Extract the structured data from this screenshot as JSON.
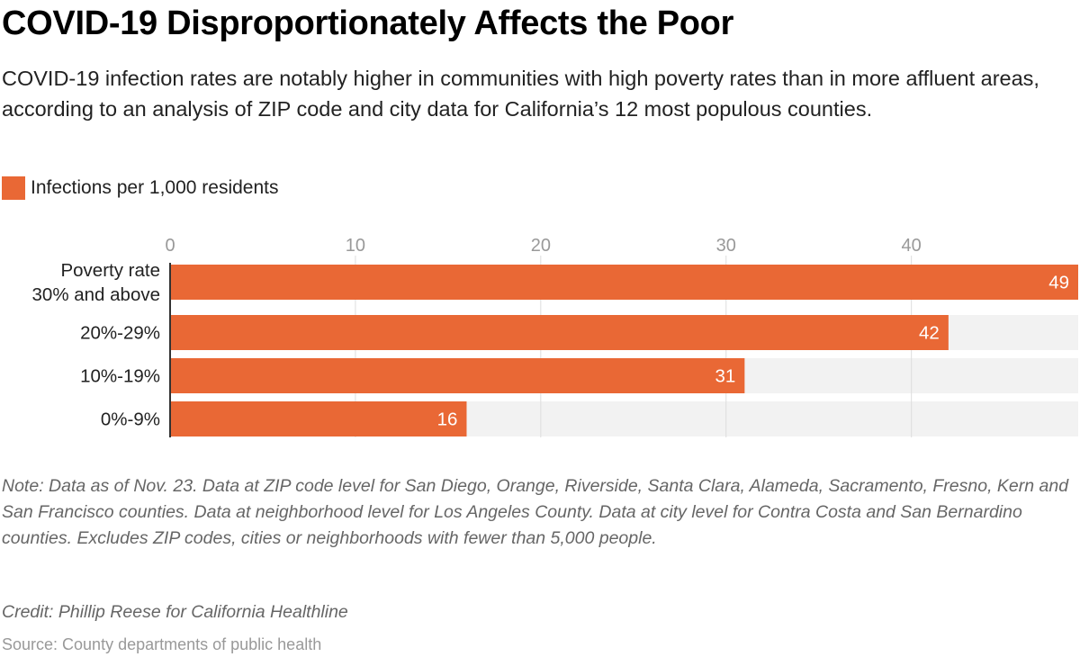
{
  "colors": {
    "bar": "#e96835",
    "track": "#f2f2f2",
    "grid": "#dddddd",
    "axis": "#333333"
  },
  "header": {
    "title": "COVID-19 Disproportionately Affects the Poor",
    "subtitle": "COVID-19 infection rates are notably higher in communities with high poverty rates than in more affluent areas, according to an analysis of ZIP code and city data for California’s 12 most populous counties."
  },
  "legend": {
    "label": "Infections per 1,000 residents"
  },
  "chart_data": {
    "type": "bar",
    "orientation": "horizontal",
    "title": "COVID-19 Disproportionately Affects the Poor",
    "categories": [
      [
        "Poverty rate",
        "30% and above"
      ],
      [
        "20%-29%"
      ],
      [
        "10%-19%"
      ],
      [
        "0%-9%"
      ]
    ],
    "series": [
      {
        "name": "Infections per 1,000 residents",
        "values": [
          49,
          42,
          31,
          16
        ]
      }
    ],
    "xlim": [
      0,
      49
    ],
    "xticks": [
      0,
      10,
      20,
      30,
      40
    ],
    "xlabel": "",
    "ylabel": "",
    "grid": true,
    "legend_position": "top-left"
  },
  "footer": {
    "note": "Note: Data as of Nov. 23. Data at ZIP code level for San Diego, Orange, Riverside, Santa Clara, Alameda, Sacramento, Fresno, Kern and San Francisco counties. Data at neighborhood level for Los Angeles County. Data at city level for Contra Costa and San Bernardino counties. Excludes ZIP codes, cities or neighborhoods with fewer than 5,000 people.",
    "credit": "Credit: Phillip Reese for California Healthline",
    "source": "Source: County departments of public health"
  }
}
